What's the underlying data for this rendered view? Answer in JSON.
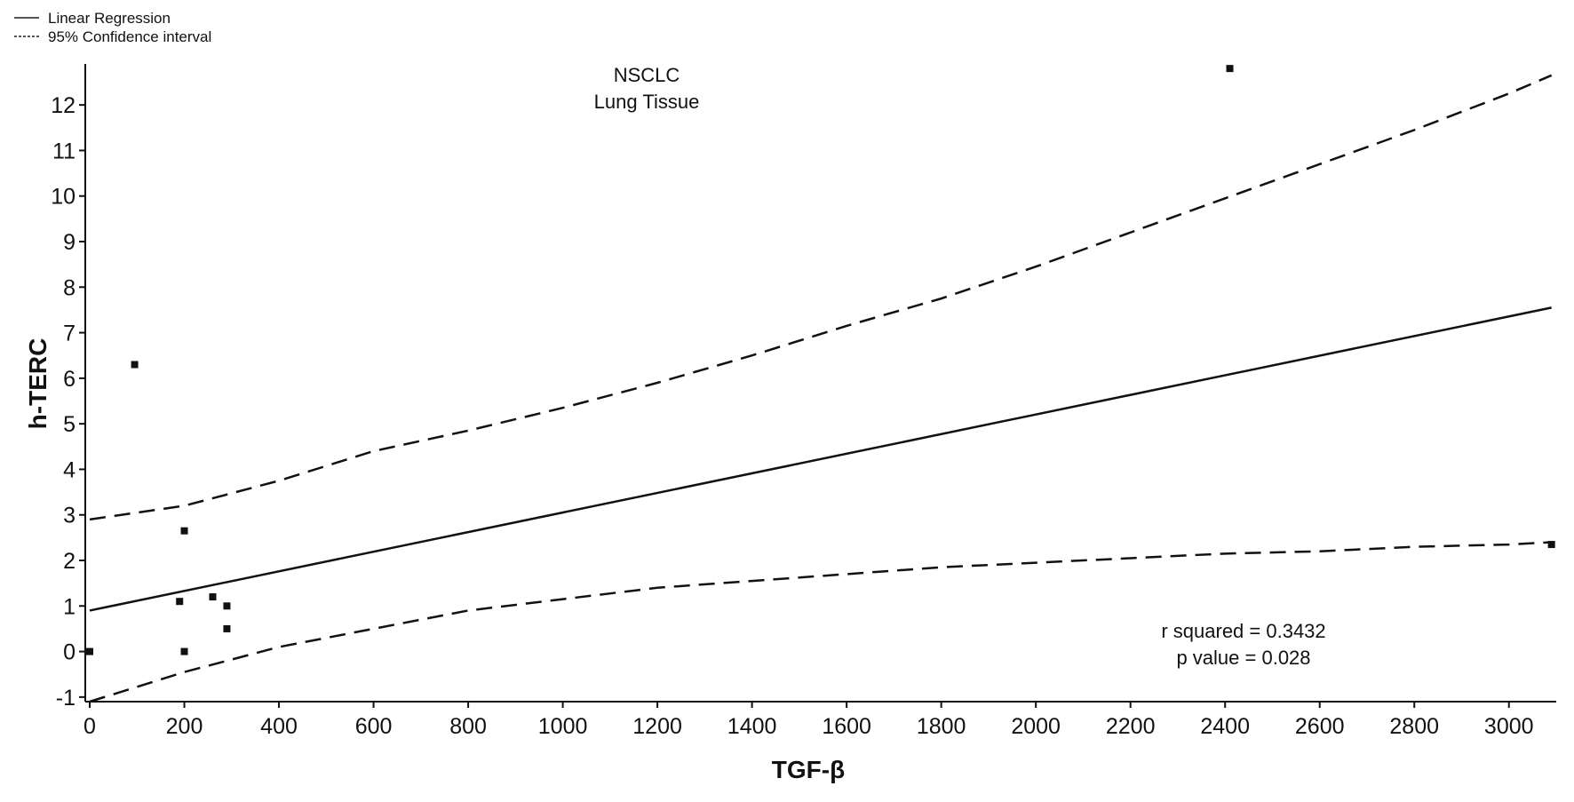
{
  "chart_data": {
    "type": "scatter",
    "title": "NSCLC",
    "subtitle": "Lung Tissue",
    "xlabel": "TGF-β",
    "ylabel": "h-TERC",
    "xlim": [
      0,
      3100
    ],
    "ylim": [
      -1.1,
      12.9
    ],
    "x_ticks": [
      0,
      200,
      400,
      600,
      800,
      1000,
      1200,
      1400,
      1600,
      1800,
      2000,
      2200,
      2400,
      2600,
      2800,
      3000
    ],
    "y_ticks": [
      -1,
      0,
      1,
      2,
      3,
      4,
      5,
      6,
      7,
      8,
      9,
      10,
      11,
      12
    ],
    "legend": {
      "placement": "top-left",
      "entries": [
        {
          "label": "Linear Regression",
          "style": "solid"
        },
        {
          "label": "95% Confidence interval",
          "style": "dashed"
        }
      ]
    },
    "points": [
      {
        "x": 0,
        "y": 0.0
      },
      {
        "x": 95,
        "y": 6.3
      },
      {
        "x": 190,
        "y": 1.1
      },
      {
        "x": 200,
        "y": 2.65
      },
      {
        "x": 200,
        "y": 0.0
      },
      {
        "x": 260,
        "y": 1.2
      },
      {
        "x": 290,
        "y": 1.0
      },
      {
        "x": 290,
        "y": 0.5
      },
      {
        "x": 2410,
        "y": 12.8
      },
      {
        "x": 3090,
        "y": 2.35
      }
    ],
    "regression": {
      "x": [
        0,
        3090
      ],
      "y": [
        0.9,
        7.55
      ]
    },
    "ci_upper": {
      "x": [
        0,
        200,
        400,
        600,
        800,
        1000,
        1200,
        1400,
        1600,
        1800,
        2000,
        2200,
        2400,
        2600,
        2800,
        3000,
        3090
      ],
      "y": [
        2.9,
        3.2,
        3.75,
        4.4,
        4.85,
        5.35,
        5.9,
        6.5,
        7.15,
        7.75,
        8.45,
        9.2,
        9.95,
        10.7,
        11.45,
        12.25,
        12.65
      ]
    },
    "ci_lower": {
      "x": [
        0,
        200,
        400,
        600,
        800,
        1000,
        1200,
        1400,
        1600,
        1800,
        2000,
        2200,
        2400,
        2600,
        2800,
        3000,
        3090
      ],
      "y": [
        -1.1,
        -0.45,
        0.1,
        0.5,
        0.9,
        1.15,
        1.4,
        1.55,
        1.7,
        1.85,
        1.95,
        2.05,
        2.15,
        2.2,
        2.3,
        2.35,
        2.4
      ]
    },
    "annotations": [
      "r squared = 0.3432",
      "p value = 0.028"
    ],
    "grid": false
  }
}
